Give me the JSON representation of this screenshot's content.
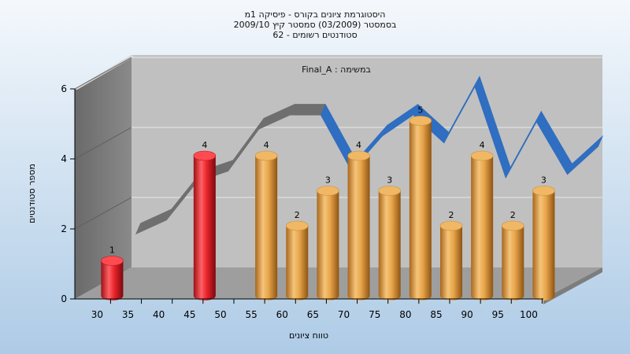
{
  "colors": {
    "bg_top": "#f4f8fc",
    "bg_bottom": "#aecbe6",
    "back_wall": "#c0c0c0",
    "side_wall": "#7f7f7f",
    "floor": "#9e9e9e",
    "highlight_bar": "#e8242b",
    "normal_bar": "#e8a54b",
    "ribbon_blue": "#2f6ec0",
    "ribbon_gray": "#6f6f6f"
  },
  "chart_data": {
    "type": "bar",
    "title_lines": [
      "היסטוגרמת ציונים בקורס - פיסיקה 1מ",
      "בסמסטר  (03/2009)  סמסטר קיץ 2009/10",
      "סטודנטים רשומים - 62"
    ],
    "subtitle": "Final_A : במשימה",
    "xlabel": "טווח ציונים",
    "ylabel": "מספר סטודנטים",
    "x_ticks": [
      "30",
      "35",
      "40",
      "45",
      "50",
      "55",
      "60",
      "65",
      "70",
      "75",
      "80",
      "85",
      "90",
      "95",
      "100"
    ],
    "y_ticks": [
      0,
      2,
      4,
      6
    ],
    "ylim": [
      0,
      6
    ],
    "grid": true,
    "bars": [
      {
        "x": 30,
        "value": 1,
        "highlight": true
      },
      {
        "x": 45,
        "value": 4,
        "highlight": true
      },
      {
        "x": 55,
        "value": 4,
        "highlight": false
      },
      {
        "x": 60,
        "value": 2,
        "highlight": false
      },
      {
        "x": 65,
        "value": 3,
        "highlight": false
      },
      {
        "x": 70,
        "value": 4,
        "highlight": false
      },
      {
        "x": 75,
        "value": 3,
        "highlight": false
      },
      {
        "x": 80,
        "value": 5,
        "highlight": false
      },
      {
        "x": 85,
        "value": 2,
        "highlight": false
      },
      {
        "x": 90,
        "value": 4,
        "highlight": false
      },
      {
        "x": 95,
        "value": 2,
        "highlight": false
      },
      {
        "x": 100,
        "value": 3,
        "highlight": false
      }
    ],
    "distribution_curve": {
      "x": [
        30,
        35,
        40,
        45,
        50,
        55,
        60,
        65,
        70,
        75,
        80,
        85,
        90,
        95,
        100,
        105
      ],
      "y": [
        1.4,
        1.8,
        2.9,
        3.2,
        4.4,
        4.8,
        4.8,
        3.2,
        4.2,
        4.8,
        4.0,
        5.6,
        3.0,
        4.6,
        3.1,
        3.9
      ]
    }
  }
}
